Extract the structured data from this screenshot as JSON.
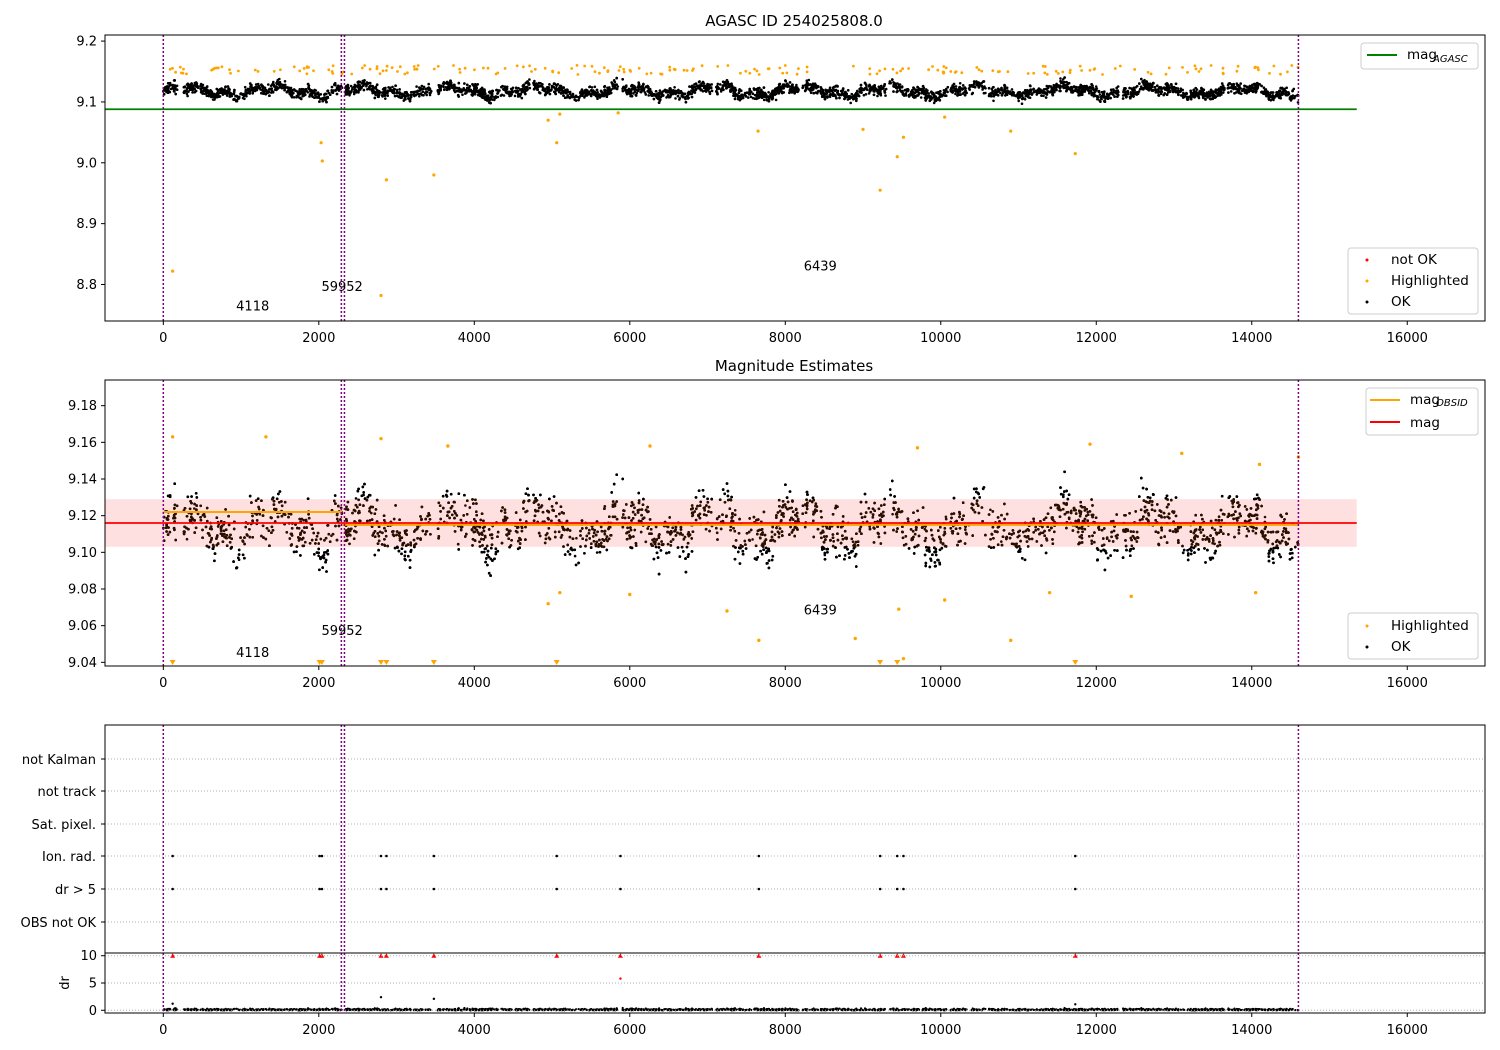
{
  "chart_data": [
    {
      "type": "scatter",
      "title": "AGASC ID 254025808.0",
      "xlim": [
        -750,
        17000
      ],
      "ylim": [
        8.74,
        9.21
      ],
      "x_ticks": [
        0,
        2000,
        4000,
        6000,
        8000,
        10000,
        12000,
        14000,
        16000
      ],
      "y_ticks": [
        8.8,
        8.9,
        9.0,
        9.1,
        9.2
      ],
      "reference_lines": [
        {
          "name": "mag_AGASC",
          "legend_label": "mag",
          "legend_sub": "AGASC",
          "y": 9.088,
          "x_range": [
            -750,
            15350
          ],
          "color": "#008000"
        }
      ],
      "obsid_boundaries": [
        0,
        2290,
        2330,
        14600
      ],
      "annotations": [
        {
          "text": "4118",
          "x": 1150,
          "y": 8.757
        },
        {
          "text": "59952",
          "x": 2300,
          "y": 8.789
        },
        {
          "text": "6439",
          "x": 8450,
          "y": 8.823
        }
      ],
      "series": [
        {
          "name": "not OK",
          "color": "#ff0000",
          "points": []
        },
        {
          "name": "Highlighted",
          "color": "#ffa500",
          "band": {
            "x_range": [
              0,
              14600
            ],
            "y_range": [
              9.145,
              9.16
            ]
          },
          "points": [
            [
              120,
              8.822
            ],
            [
              2030,
              9.033
            ],
            [
              2045,
              9.003
            ],
            [
              2800,
              8.782
            ],
            [
              2870,
              8.972
            ],
            [
              3480,
              8.98
            ],
            [
              5060,
              9.033
            ],
            [
              5850,
              9.082
            ],
            [
              9220,
              8.955
            ],
            [
              9440,
              9.01
            ],
            [
              9520,
              9.042
            ],
            [
              9000,
              9.055
            ],
            [
              10900,
              9.052
            ],
            [
              11730,
              9.015
            ],
            [
              7650,
              9.052
            ],
            [
              4950,
              9.07
            ],
            [
              5100,
              9.08
            ],
            [
              10050,
              9.075
            ]
          ]
        },
        {
          "name": "OK",
          "color": "#000000",
          "band": {
            "x_range": [
              0,
              14600
            ],
            "y_range": [
              9.095,
              9.145
            ]
          },
          "points": []
        }
      ],
      "legend_position": "lower-right"
    },
    {
      "type": "scatter",
      "title": "Magnitude Estimates",
      "xlim": [
        -750,
        17000
      ],
      "ylim": [
        9.038,
        9.194
      ],
      "x_ticks": [
        0,
        2000,
        4000,
        6000,
        8000,
        10000,
        12000,
        14000,
        16000
      ],
      "y_ticks": [
        9.04,
        9.06,
        9.08,
        9.1,
        9.12,
        9.14,
        9.16,
        9.18
      ],
      "reference_lines": [
        {
          "name": "mag_OBSID",
          "legend_label": "mag",
          "legend_sub": "OBSID",
          "color": "#ffa500",
          "segments": [
            {
              "x_range": [
                0,
                2300
              ],
              "y": 9.122
            },
            {
              "x_range": [
                2300,
                14600
              ],
              "y": 9.115
            }
          ]
        },
        {
          "name": "mag",
          "legend_label": "mag",
          "color": "#ff0000",
          "y": 9.116,
          "x_range": [
            -750,
            15350
          ],
          "band": [
            9.103,
            9.129
          ]
        }
      ],
      "obsid_boundaries": [
        0,
        2290,
        2330,
        14600
      ],
      "annotations": [
        {
          "text": "4118",
          "x": 1150,
          "y": 9.043
        },
        {
          "text": "59952",
          "x": 2300,
          "y": 9.055
        },
        {
          "text": "6439",
          "x": 8450,
          "y": 9.066
        }
      ],
      "series": [
        {
          "name": "Highlighted",
          "color": "#ffa500",
          "points": [
            [
              120,
              9.163
            ],
            [
              1320,
              9.163
            ],
            [
              2800,
              9.162
            ],
            [
              3660,
              9.158
            ],
            [
              4950,
              9.072
            ],
            [
              5100,
              9.078
            ],
            [
              6000,
              9.077
            ],
            [
              6260,
              9.158
            ],
            [
              7250,
              9.068
            ],
            [
              7660,
              9.052
            ],
            [
              8900,
              9.053
            ],
            [
              9460,
              9.069
            ],
            [
              9520,
              9.042
            ],
            [
              9700,
              9.157
            ],
            [
              10050,
              9.074
            ],
            [
              10900,
              9.052
            ],
            [
              11400,
              9.078
            ],
            [
              11920,
              9.159
            ],
            [
              12450,
              9.076
            ],
            [
              13100,
              9.154
            ],
            [
              14050,
              9.078
            ],
            [
              14100,
              9.148
            ],
            [
              14600,
              9.152
            ]
          ],
          "clipped_at_bottom_x": [
            120,
            2010,
            2040,
            2800,
            2870,
            3480,
            5060,
            9220,
            9440,
            11730
          ]
        },
        {
          "name": "OK",
          "color": "#000000",
          "band": {
            "x_range": [
              0,
              14600
            ],
            "y_range": [
              9.085,
              9.15
            ]
          },
          "points": []
        }
      ],
      "legend_position": "lower-right"
    },
    {
      "type": "scatter",
      "title": "",
      "categories": [
        "not Kalman",
        "not track",
        "Sat. pixel.",
        "Ion. rad.",
        "dr > 5",
        "OBS not OK"
      ],
      "flag_points_x": {
        "Ion. rad.": [
          120,
          2010,
          2040,
          2800,
          2870,
          3480,
          5060,
          5880,
          7660,
          9220,
          9440,
          9520,
          11730
        ],
        "dr > 5": [
          120,
          2010,
          2040,
          2800,
          2870,
          3480,
          5060,
          5880,
          7660,
          9220,
          9440,
          9520,
          11730
        ]
      },
      "obsid_boundaries": [
        0,
        2290,
        2330,
        14600
      ],
      "xlim": [
        -750,
        17000
      ]
    },
    {
      "type": "scatter",
      "title": "",
      "ylabel": "dr",
      "xlim": [
        -750,
        17000
      ],
      "ylim": [
        -0.5,
        10.5
      ],
      "x_ticks": [
        0,
        2000,
        4000,
        6000,
        8000,
        10000,
        12000,
        14000,
        16000
      ],
      "y_ticks": [
        0,
        5,
        10
      ],
      "clipped_at_top_x": [
        120,
        2010,
        2040,
        2800,
        2870,
        3480,
        5060,
        5880,
        7660,
        9220,
        9440,
        9520,
        11730
      ],
      "outliers": [
        [
          5880,
          5.8
        ],
        [
          2800,
          2.4
        ],
        [
          3480,
          2.1
        ],
        [
          120,
          1.2
        ],
        [
          11730,
          1.1
        ]
      ],
      "obsid_boundaries": [
        0,
        2290,
        2330,
        14600
      ]
    }
  ]
}
